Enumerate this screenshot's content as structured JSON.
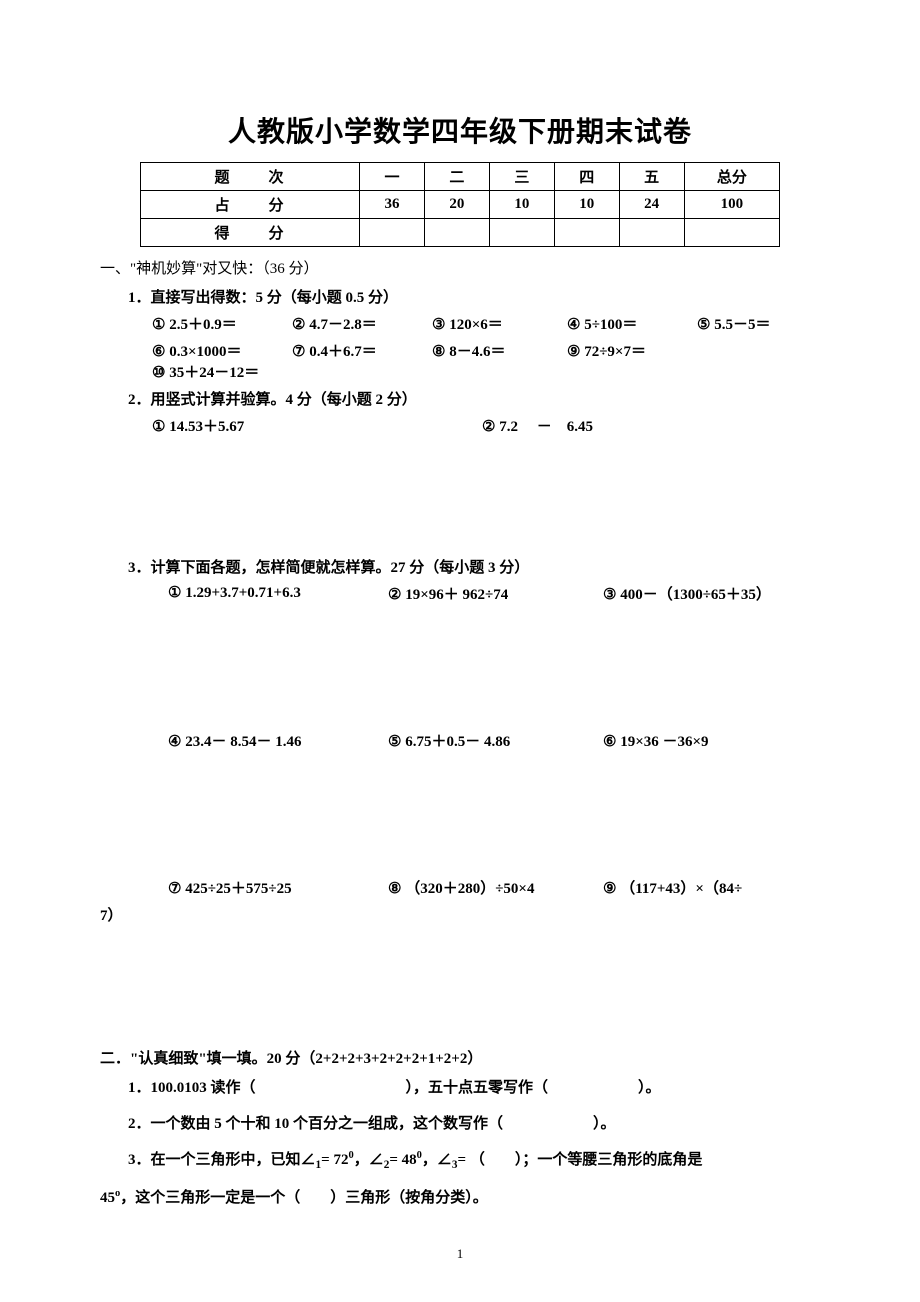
{
  "title": "人教版小学数学四年级下册期末试卷",
  "score_table": {
    "headers": [
      "题　次",
      "一",
      "二",
      "三",
      "四",
      "五",
      "总分"
    ],
    "points_label": "占　分",
    "points": [
      "36",
      "20",
      "10",
      "10",
      "24",
      "100"
    ],
    "score_label": "得　分",
    "scores": [
      "",
      "",
      "",
      "",
      "",
      ""
    ]
  },
  "section1": {
    "head": "一、\"神机妙算\"对又快：（36 分）",
    "q1": {
      "label": "1．直接写出得数：5 分（每小题 0.5 分）",
      "row1": [
        "① 2.5＋0.9＝",
        "② 4.7－2.8＝",
        "③ 120×6＝",
        "④ 5÷100＝",
        "⑤ 5.5－5＝"
      ],
      "row2": [
        "⑥ 0.3×1000＝",
        "⑦ 0.4＋6.7＝",
        "⑧ 8－4.6＝",
        "⑨ 72÷9×7＝",
        "⑩ 35＋24－12＝"
      ]
    },
    "q2": {
      "label": "2．用竖式计算并验算。4 分（每小题 2 分）",
      "left": "①  14.53＋5.67",
      "right": "②  7.2　 －　6.45"
    },
    "q3": {
      "label": "3．计算下面各题，怎样简便就怎样算。27 分（每小题 3 分）",
      "row1": [
        "①  1.29+3.7+0.71+6.3",
        "②  19×96＋ 962÷74",
        "③  400－（1300÷65＋35）"
      ],
      "row2": [
        "④  23.4－ 8.54－ 1.46",
        "⑤  6.75＋0.5－ 4.86",
        "⑥  19×36 －36×9"
      ],
      "row3": [
        "⑦  425÷25＋575÷25",
        "⑧ （320＋280）÷50×4",
        "⑨ （117+43）×（84÷"
      ],
      "row3_tail": "7）"
    }
  },
  "section2": {
    "head": "二．\"认真细致\"填一填。20 分（2+2+2+3+2+2+2+1+2+2）",
    "q1": "1．100.0103 读作（　　　　　　　　　　），五十点五零写作（　　　　　　）。",
    "q2": "2．一个数由 5 个十和 10 个百分之一组成，这个数写作（　　　　　　）。",
    "q3_a": "3．在一个三角形中，已知∠",
    "q3_b": "= 72",
    "q3_c": "，∠",
    "q3_d": "= 48",
    "q3_e": "，∠",
    "q3_f": "= （　　）；一个等腰三角形的底角是",
    "q3_cont": "45",
    "q3_tail": "，这个三角形一定是一个（　　）三角形（按角分类）。"
  },
  "page_num": "1"
}
